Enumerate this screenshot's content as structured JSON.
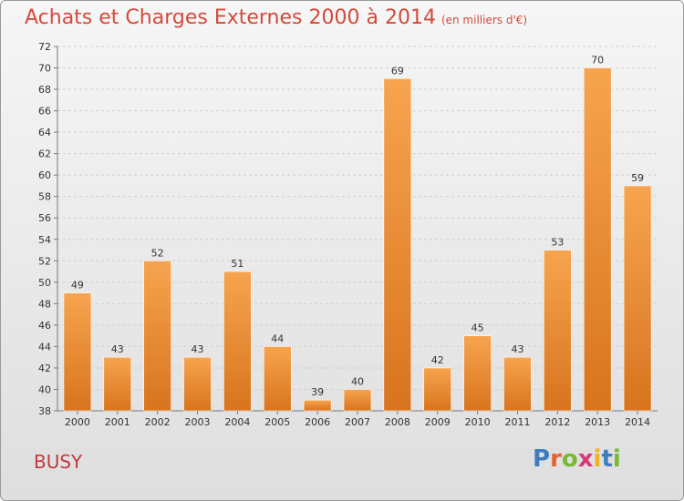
{
  "header": {
    "title": "Achats et Charges Externes 2000 à 2014",
    "unit": "(en milliers d'€)"
  },
  "footer": {
    "city": "BUSY",
    "logo_letters": [
      "P",
      "r",
      "o",
      "x",
      "i",
      "t",
      "i"
    ]
  },
  "colors": {
    "bar_light": "#f7a44e",
    "bar_dark": "#d8741e",
    "title": "#d34a3c",
    "city": "#c03b3b"
  },
  "chart_data": {
    "type": "bar",
    "title": "Achats et Charges Externes 2000 à 2014",
    "subtitle": "(en milliers d'€)",
    "categories": [
      "2000",
      "2001",
      "2002",
      "2003",
      "2004",
      "2005",
      "2006",
      "2007",
      "2008",
      "2009",
      "2010",
      "2011",
      "2012",
      "2013",
      "2014"
    ],
    "values": [
      49,
      43,
      52,
      43,
      51,
      44,
      39,
      40,
      69,
      42,
      45,
      43,
      53,
      70,
      59
    ],
    "ylim": [
      38,
      72
    ],
    "yticks": [
      38,
      40,
      42,
      44,
      46,
      48,
      50,
      52,
      54,
      56,
      58,
      60,
      62,
      64,
      66,
      68,
      70,
      72
    ],
    "grid": true,
    "xlabel": "",
    "ylabel": ""
  }
}
